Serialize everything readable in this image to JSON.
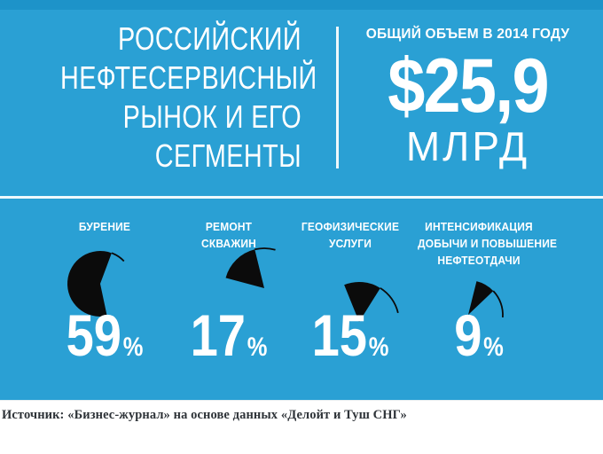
{
  "header": {
    "title_lines": [
      "РОССИЙСКИЙ",
      "НЕФТЕСЕРВИСНЫЙ",
      "РЫНОК И ЕГО",
      "СЕГМЕНТЫ"
    ],
    "total_label": "ОБЩИЙ ОБЪЕМ В 2014 ГОДУ",
    "total_value": "$25,9",
    "total_unit": "МЛРД"
  },
  "chart_data": {
    "type": "pie",
    "title": "Российский нефтесервисный рынок и его сегменты",
    "subtitle": "Общий объем в 2014 году $25,9 млрд",
    "categories": [
      "БУРЕНИЕ",
      "РЕМОНТ СКВАЖИН",
      "ГЕОФИЗИЧЕСКИЕ УСЛУГИ",
      "ИНТЕНСИФИКАЦИЯ ДОБЫЧИ И ПОВЫШЕНИЕ НЕФТЕОТДАЧИ"
    ],
    "values": [
      59,
      17,
      15,
      9
    ],
    "unit": "%",
    "legend_position": "above-each-slice",
    "slice_color": "#0b0b0b"
  },
  "segments": [
    {
      "label_lines": [
        "БУРЕНИЕ"
      ],
      "value": "59",
      "pie": {
        "radius": 37,
        "start_deg": 168,
        "tail_deg": 26
      }
    },
    {
      "label_lines": [
        "РЕМОНТ",
        "СКВАЖИН"
      ],
      "value": "17",
      "pie": {
        "radius": 45,
        "start_deg": 285,
        "tail_deg": 30
      }
    },
    {
      "label_lines": [
        "ГЕОФИЗИЧЕСКИЕ",
        "УСЛУГИ"
      ],
      "value": "15",
      "pie": {
        "radius": 45,
        "start_deg": 338,
        "tail_deg": 45
      }
    },
    {
      "label_lines": [
        "ИНТЕНСИФИКАЦИЯ",
        "ДОБЫЧИ И ПОВЫШЕНИЕ",
        "НЕФТЕОТДАЧИ"
      ],
      "value": "9",
      "pie": {
        "radius": 39,
        "start_deg": 14,
        "tail_deg": 48
      }
    }
  ],
  "unit": "%",
  "source": {
    "text": "Источник: «Бизнес-журнал» на основе данных «Делойт и Туш СНГ»"
  },
  "colors": {
    "background": "#2aa0d4",
    "top_strip": "#1d93c9",
    "pie_fill": "#0b0b0b",
    "text": "#ffffff",
    "source_text": "#2e3338"
  }
}
